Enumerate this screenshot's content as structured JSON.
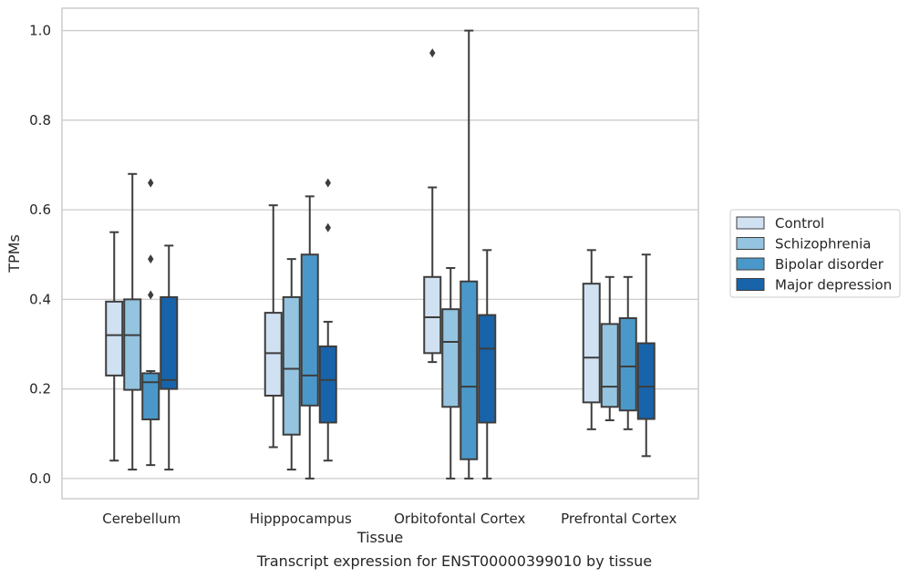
{
  "caption": "Transcript expression for ENST00000399010 by tissue",
  "chart_data": {
    "type": "boxplot",
    "xlabel": "Tissue",
    "ylabel": "TPMs",
    "ylim": [
      -0.045,
      1.05
    ],
    "yticks": [
      0.0,
      0.2,
      0.4,
      0.6,
      0.8,
      1.0
    ],
    "ytick_labels": [
      "0.0",
      "0.2",
      "0.4",
      "0.6",
      "0.8",
      "1.0"
    ],
    "grid": "horizontal",
    "legend_position": "right",
    "categories": [
      "Cerebellum",
      "Hipppocampus",
      "Orbitofontal Cortex",
      "Prefrontal Cortex"
    ],
    "series": [
      {
        "name": "Control",
        "color": "#d0e1f2",
        "boxes": [
          {
            "whislo": 0.04,
            "q1": 0.23,
            "med": 0.32,
            "q3": 0.395,
            "whishi": 0.55,
            "fliers": []
          },
          {
            "whislo": 0.07,
            "q1": 0.185,
            "med": 0.28,
            "q3": 0.37,
            "whishi": 0.61,
            "fliers": []
          },
          {
            "whislo": 0.26,
            "q1": 0.28,
            "med": 0.36,
            "q3": 0.45,
            "whishi": 0.65,
            "fliers": [
              0.95
            ]
          },
          {
            "whislo": 0.11,
            "q1": 0.17,
            "med": 0.27,
            "q3": 0.435,
            "whishi": 0.51,
            "fliers": []
          }
        ]
      },
      {
        "name": "Schizophrenia",
        "color": "#94c4df",
        "boxes": [
          {
            "whislo": 0.02,
            "q1": 0.198,
            "med": 0.32,
            "q3": 0.4,
            "whishi": 0.68,
            "fliers": []
          },
          {
            "whislo": 0.02,
            "q1": 0.098,
            "med": 0.245,
            "q3": 0.405,
            "whishi": 0.49,
            "fliers": []
          },
          {
            "whislo": 0.0,
            "q1": 0.16,
            "med": 0.305,
            "q3": 0.378,
            "whishi": 0.47,
            "fliers": []
          },
          {
            "whislo": 0.13,
            "q1": 0.16,
            "med": 0.205,
            "q3": 0.345,
            "whishi": 0.45,
            "fliers": []
          }
        ]
      },
      {
        "name": "Bipolar disorder",
        "color": "#4a98c9",
        "boxes": [
          {
            "whislo": 0.03,
            "q1": 0.132,
            "med": 0.215,
            "q3": 0.235,
            "whishi": 0.24,
            "fliers": [
              0.41,
              0.49,
              0.66
            ]
          },
          {
            "whislo": 0.0,
            "q1": 0.163,
            "med": 0.23,
            "q3": 0.5,
            "whishi": 0.63,
            "fliers": []
          },
          {
            "whislo": 0.0,
            "q1": 0.043,
            "med": 0.205,
            "q3": 0.44,
            "whishi": 1.0,
            "fliers": []
          },
          {
            "whislo": 0.11,
            "q1": 0.152,
            "med": 0.25,
            "q3": 0.358,
            "whishi": 0.45,
            "fliers": []
          }
        ]
      },
      {
        "name": "Major depression",
        "color": "#1764ab",
        "boxes": [
          {
            "whislo": 0.02,
            "q1": 0.2,
            "med": 0.22,
            "q3": 0.405,
            "whishi": 0.52,
            "fliers": []
          },
          {
            "whislo": 0.04,
            "q1": 0.125,
            "med": 0.22,
            "q3": 0.295,
            "whishi": 0.35,
            "fliers": [
              0.56,
              0.66
            ]
          },
          {
            "whislo": 0.0,
            "q1": 0.125,
            "med": 0.29,
            "q3": 0.365,
            "whishi": 0.51,
            "fliers": []
          },
          {
            "whislo": 0.05,
            "q1": 0.133,
            "med": 0.205,
            "q3": 0.302,
            "whishi": 0.5,
            "fliers": []
          }
        ]
      }
    ]
  }
}
